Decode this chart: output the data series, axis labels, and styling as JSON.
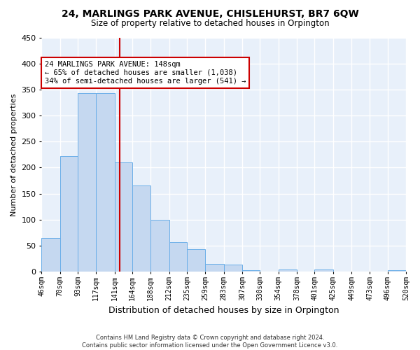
{
  "title1": "24, MARLINGS PARK AVENUE, CHISLEHURST, BR7 6QW",
  "title2": "Size of property relative to detached houses in Orpington",
  "xlabel": "Distribution of detached houses by size in Orpington",
  "ylabel": "Number of detached properties",
  "bar_left_edges": [
    46,
    70,
    93,
    117,
    141,
    164,
    188,
    212,
    235,
    259,
    283,
    307,
    330,
    354,
    378,
    401,
    425,
    449,
    473,
    496
  ],
  "bar_widths": [
    24,
    23,
    24,
    24,
    23,
    24,
    24,
    23,
    24,
    24,
    24,
    23,
    24,
    24,
    23,
    24,
    24,
    24,
    23,
    24
  ],
  "bar_heights": [
    65,
    222,
    344,
    344,
    210,
    165,
    99,
    57,
    43,
    15,
    13,
    3,
    0,
    4,
    0,
    4,
    0,
    0,
    0,
    3
  ],
  "bar_color": "#c5d8f0",
  "bar_edge_color": "#6aaee8",
  "tick_labels": [
    "46sqm",
    "70sqm",
    "93sqm",
    "117sqm",
    "141sqm",
    "164sqm",
    "188sqm",
    "212sqm",
    "235sqm",
    "259sqm",
    "283sqm",
    "307sqm",
    "330sqm",
    "354sqm",
    "378sqm",
    "401sqm",
    "425sqm",
    "449sqm",
    "473sqm",
    "496sqm",
    "520sqm"
  ],
  "property_size": 148,
  "vline_color": "#cc0000",
  "annotation_text": "24 MARLINGS PARK AVENUE: 148sqm\n← 65% of detached houses are smaller (1,038)\n34% of semi-detached houses are larger (541) →",
  "annotation_box_color": "#cc0000",
  "annotation_text_color": "#000000",
  "ylim": [
    0,
    450
  ],
  "yticks": [
    0,
    50,
    100,
    150,
    200,
    250,
    300,
    350,
    400,
    450
  ],
  "bg_color": "#ffffff",
  "plot_bg_color": "#e8f0fa",
  "grid_color": "#ffffff",
  "footnote": "Contains HM Land Registry data © Crown copyright and database right 2024.\nContains public sector information licensed under the Open Government Licence v3.0."
}
